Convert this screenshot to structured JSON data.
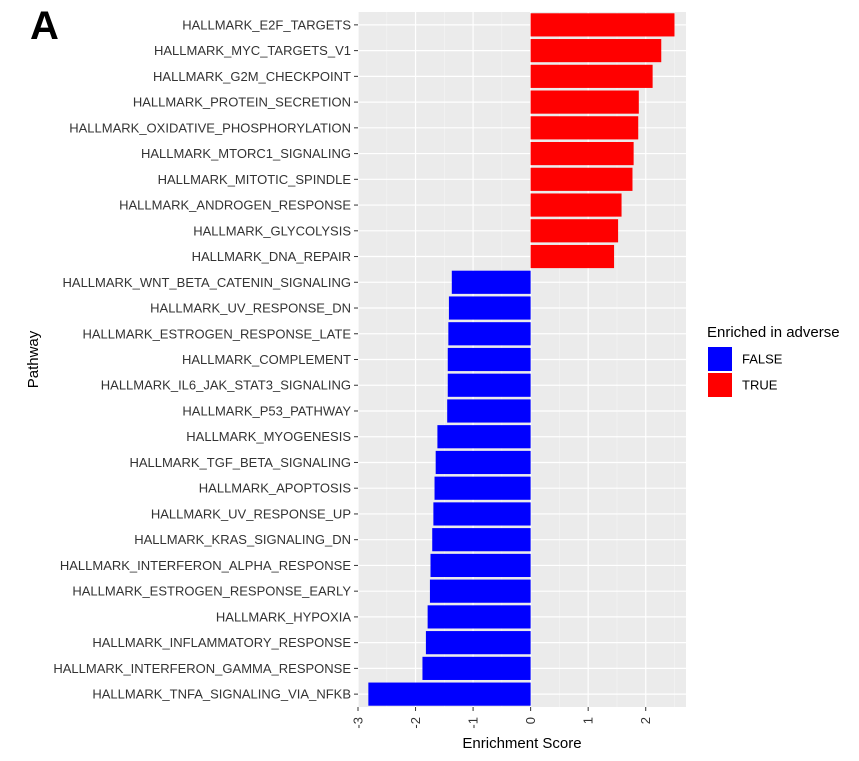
{
  "panel_label": "A",
  "chart_data": {
    "type": "bar",
    "orientation": "horizontal",
    "xlabel": "Enrichment Score",
    "ylabel": "Pathway",
    "xlim": [
      -3.0,
      2.7
    ],
    "xticks": [
      -3,
      -2,
      -1,
      0,
      1,
      2
    ],
    "grid": true,
    "legend": {
      "title": "Enriched in adverse",
      "placement": "right",
      "entries": [
        {
          "label": "FALSE",
          "color": "#0000ff"
        },
        {
          "label": "TRUE",
          "color": "#ff0000"
        }
      ]
    },
    "categories": [
      "HALLMARK_E2F_TARGETS",
      "HALLMARK_MYC_TARGETS_V1",
      "HALLMARK_G2M_CHECKPOINT",
      "HALLMARK_PROTEIN_SECRETION",
      "HALLMARK_OXIDATIVE_PHOSPHORYLATION",
      "HALLMARK_MTORC1_SIGNALING",
      "HALLMARK_MITOTIC_SPINDLE",
      "HALLMARK_ANDROGEN_RESPONSE",
      "HALLMARK_GLYCOLYSIS",
      "HALLMARK_DNA_REPAIR",
      "HALLMARK_WNT_BETA_CATENIN_SIGNALING",
      "HALLMARK_UV_RESPONSE_DN",
      "HALLMARK_ESTROGEN_RESPONSE_LATE",
      "HALLMARK_COMPLEMENT",
      "HALLMARK_IL6_JAK_STAT3_SIGNALING",
      "HALLMARK_P53_PATHWAY",
      "HALLMARK_MYOGENESIS",
      "HALLMARK_TGF_BETA_SIGNALING",
      "HALLMARK_APOPTOSIS",
      "HALLMARK_UV_RESPONSE_UP",
      "HALLMARK_KRAS_SIGNALING_DN",
      "HALLMARK_INTERFERON_ALPHA_RESPONSE",
      "HALLMARK_ESTROGEN_RESPONSE_EARLY",
      "HALLMARK_HYPOXIA",
      "HALLMARK_INFLAMMATORY_RESPONSE",
      "HALLMARK_INTERFERON_GAMMA_RESPONSE",
      "HALLMARK_TNFA_SIGNALING_VIA_NFKB"
    ],
    "values": [
      2.5,
      2.27,
      2.12,
      1.88,
      1.87,
      1.79,
      1.77,
      1.58,
      1.52,
      1.45,
      -1.37,
      -1.42,
      -1.43,
      -1.44,
      -1.44,
      -1.45,
      -1.62,
      -1.65,
      -1.67,
      -1.69,
      -1.71,
      -1.74,
      -1.75,
      -1.79,
      -1.82,
      -1.88,
      -2.82
    ],
    "enriched_in_adverse": [
      true,
      true,
      true,
      true,
      true,
      true,
      true,
      true,
      true,
      true,
      false,
      false,
      false,
      false,
      false,
      false,
      false,
      false,
      false,
      false,
      false,
      false,
      false,
      false,
      false,
      false,
      false
    ]
  }
}
